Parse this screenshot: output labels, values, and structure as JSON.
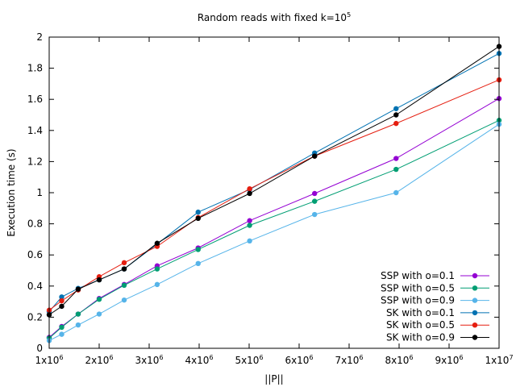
{
  "chart_data": {
    "type": "line",
    "title": {
      "base": "Random reads with fixed k=10",
      "exp": "5"
    },
    "xlabel": "||P||",
    "ylabel": "Execution time (s)",
    "xlim": [
      1000000,
      10000000
    ],
    "ylim": [
      0,
      2
    ],
    "grid": false,
    "legend_position": "bottom-right",
    "x_ticks": [
      {
        "value": 1000000,
        "base": "1x10",
        "exp": "6"
      },
      {
        "value": 2000000,
        "base": "2x10",
        "exp": "6"
      },
      {
        "value": 3000000,
        "base": "3x10",
        "exp": "6"
      },
      {
        "value": 4000000,
        "base": "4x10",
        "exp": "6"
      },
      {
        "value": 5000000,
        "base": "5x10",
        "exp": "6"
      },
      {
        "value": 6000000,
        "base": "6x10",
        "exp": "6"
      },
      {
        "value": 7000000,
        "base": "7x10",
        "exp": "6"
      },
      {
        "value": 8000000,
        "base": "8x10",
        "exp": "6"
      },
      {
        "value": 9000000,
        "base": "9x10",
        "exp": "6"
      },
      {
        "value": 10000000,
        "base": "1x10",
        "exp": "7"
      }
    ],
    "y_ticks": [
      {
        "value": 0,
        "label": "0"
      },
      {
        "value": 0.2,
        "label": "0.2"
      },
      {
        "value": 0.4,
        "label": "0.4"
      },
      {
        "value": 0.6,
        "label": "0.6"
      },
      {
        "value": 0.8,
        "label": "0.8"
      },
      {
        "value": 1.0,
        "label": "1"
      },
      {
        "value": 1.2,
        "label": "1.2"
      },
      {
        "value": 1.4,
        "label": "1.4"
      },
      {
        "value": 1.6,
        "label": "1.6"
      },
      {
        "value": 1.8,
        "label": "1.8"
      },
      {
        "value": 2.0,
        "label": "2"
      }
    ],
    "x": [
      1000000,
      1250000,
      1580000,
      2000000,
      2500000,
      3160000,
      3980000,
      5010000,
      6310000,
      7940000,
      10000000
    ],
    "series": [
      {
        "name": "SSP with o=0.1",
        "color": "#9400d3",
        "values": [
          0.07,
          0.14,
          0.22,
          0.32,
          0.41,
          0.53,
          0.645,
          0.82,
          0.995,
          1.22,
          1.605
        ]
      },
      {
        "name": "SSP with o=0.5",
        "color": "#009e73",
        "values": [
          0.065,
          0.135,
          0.22,
          0.315,
          0.405,
          0.51,
          0.635,
          0.79,
          0.945,
          1.15,
          1.465
        ]
      },
      {
        "name": "SSP with o=0.9",
        "color": "#56b4e9",
        "values": [
          0.05,
          0.09,
          0.15,
          0.22,
          0.31,
          0.41,
          0.545,
          0.69,
          0.86,
          1.0,
          1.44
        ]
      },
      {
        "name": "SK with o=0.1",
        "color": "#0072b2",
        "values": [
          0.235,
          0.33,
          0.385,
          0.44,
          0.51,
          0.67,
          0.875,
          1.02,
          1.255,
          1.54,
          1.895
        ]
      },
      {
        "name": "SK with o=0.5",
        "color": "#e51e10",
        "values": [
          0.245,
          0.305,
          0.375,
          0.46,
          0.55,
          0.655,
          0.84,
          1.025,
          1.235,
          1.445,
          1.725
        ]
      },
      {
        "name": "SK with o=0.9",
        "color": "#000000",
        "values": [
          0.215,
          0.27,
          0.38,
          0.44,
          0.51,
          0.675,
          0.835,
          0.995,
          1.235,
          1.5,
          1.94
        ]
      }
    ]
  }
}
